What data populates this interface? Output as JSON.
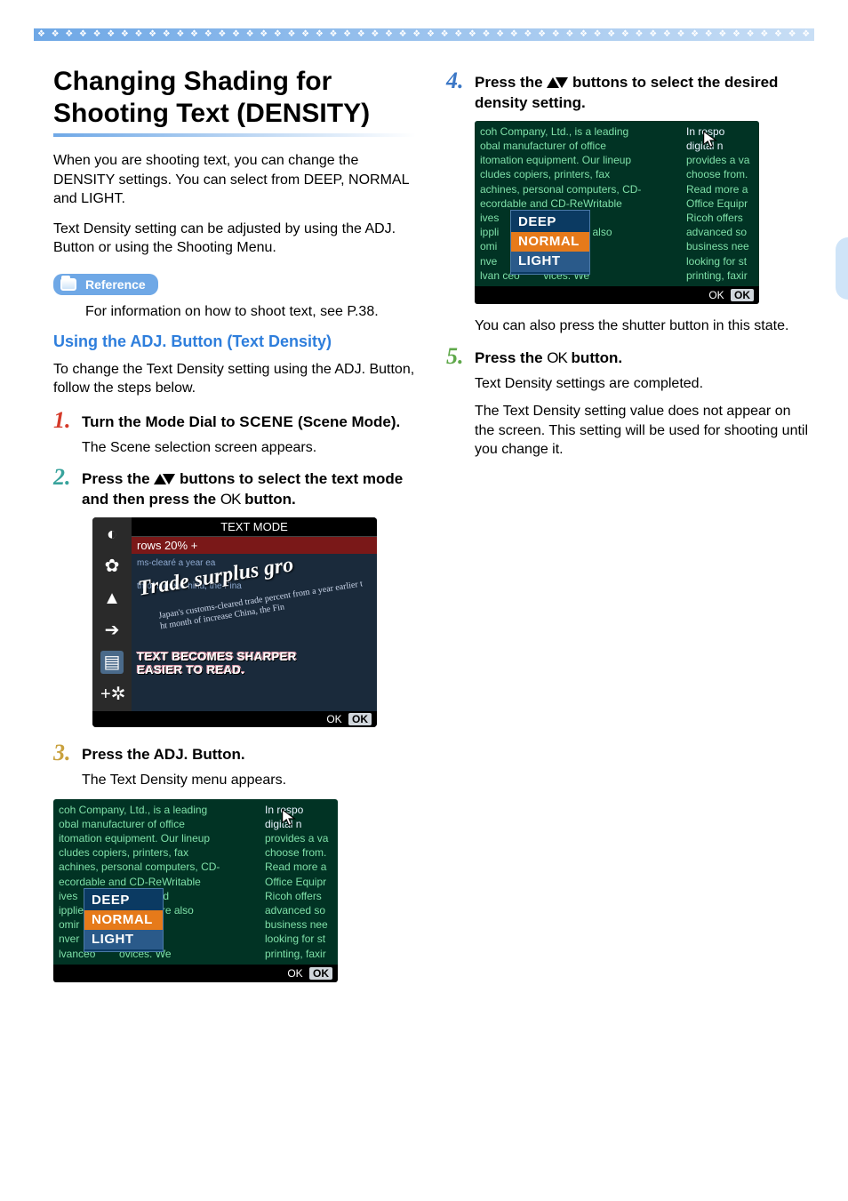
{
  "colors": {
    "band_start": "#6fa8e6",
    "band_end": "#c8def5",
    "blue_heading": "#2e7edc",
    "body_text": "#000000",
    "step_red": "#d53a2a",
    "step_teal": "#38a39c",
    "step_gold": "#c9a13e",
    "step_blue": "#3b77c6",
    "step_green": "#5fa84a",
    "lcd_bg_dark": "#1a2a3b",
    "lcd_green_bg": "#013324",
    "lcd_green_text": "#7fe0a8",
    "popup_bg": "#0b3a62",
    "popup_sel": "#e67a1a",
    "side_tab": "#cfe4f8"
  },
  "typography": {
    "heading_size_pt": 22,
    "body_size_pt": 12,
    "step_num_size_pt": 20,
    "step_text_size_pt": 13,
    "blue_sub_size_pt": 14
  },
  "left": {
    "heading": "Changing Shading for Shooting Text (DENSITY)",
    "intro1": "When you are shooting text, you can change the DENSITY settings. You can select from DEEP, NORMAL and LIGHT.",
    "intro2": "Text Density setting can be adjusted by using the ADJ. Button or using the Shooting Menu.",
    "reference_label": "Reference",
    "reference_body": "For information on how to shoot text, see P.38.",
    "blue_sub": "Using the ADJ. Button (Text Density)",
    "sub_intro": "To change the Text Density setting using the ADJ. Button, follow the steps below.",
    "step1": {
      "num": "1.",
      "text_prefix": "Turn the Mode Dial to ",
      "scene_word": "SCENE",
      "text_suffix": " (Scene Mode).",
      "body": "The Scene selection screen appears."
    },
    "step2": {
      "num": "2.",
      "text_prefix": "Press the ",
      "text_mid": " buttons to select the text mode and then press the ",
      "ok": "OK",
      "text_suffix": " button."
    },
    "lcd_text": {
      "title": "TEXT MODE",
      "rows_line": "rows 20% +",
      "headline": "Trade surplus gro",
      "bg1": "ms-clearé\na year ea",
      "bg2": "th of increas\nhina, the Fina",
      "subtext": "Japan's customs-cleared trade percent from a year earlier t ht month of increase China, the Fin",
      "overlay1": "TEXT BECOMES SHARPER",
      "overlay2": "EASIER TO READ.",
      "footer_ok": "OK",
      "footer_ok_btn": "OK",
      "icons": [
        "globe",
        "leaf",
        "mountain",
        "dial",
        "doc",
        "plus-cog"
      ]
    },
    "step3": {
      "num": "3.",
      "text": "Press the ADJ. Button.",
      "body": "The Text Density menu appears."
    },
    "lcd_green": {
      "left_lines": [
        "coh Company, Ltd., is a leading",
        "obal manufacturer of office",
        "itomation equipment. Our lineup",
        "cludes copiers, printers, fax",
        "achines, personal computers, CD-",
        "ecordable and CD-ReWritable",
        "ives",
        "ipplie",
        "omir",
        "nver",
        "lvanceo"
      ],
      "left_after": [
        "l related",
        ". We are also",
        "d",
        "and",
        "ovices. We"
      ],
      "right_lines": [
        "In respo",
        "digital n",
        "provides a va",
        "choose from.",
        "Read more a",
        "Office Equipr",
        "Ricoh offers",
        "advanced so",
        "business nee",
        "looking for st",
        "printing, faxir"
      ],
      "options": [
        "DEEP",
        "NORMAL",
        "LIGHT"
      ],
      "selected_index": 1,
      "footer_ok": "OK",
      "footer_ok_btn": "OK"
    }
  },
  "right": {
    "step4": {
      "num": "4.",
      "text_prefix": "Press the ",
      "text_suffix": " buttons to select the desired density setting."
    },
    "lcd_green2": {
      "left_lines": [
        "coh Company, Ltd., is a leading",
        "obal manufacturer of office",
        "itomation equipment. Our lineup",
        "cludes copiers, printers, fax",
        "achines, personal computers, CD-",
        "ecordable and CD-ReWritable",
        "ives",
        "ippli",
        "omi",
        "nve",
        "lvan ceo"
      ],
      "left_after": [
        "l related",
        ". We are also",
        "il",
        "and",
        "vices. We"
      ],
      "right_lines": [
        "In respo",
        "digital n",
        "provides a va",
        "choose from.",
        "Read more a",
        "Office Equipr",
        "Ricoh offers",
        "advanced so",
        "business nee",
        "looking for st",
        "printing, faxir"
      ],
      "options": [
        "DEEP",
        "NORMAL",
        "LIGHT"
      ],
      "selected_index": 2,
      "footer_ok": "OK",
      "footer_ok_btn": "OK"
    },
    "body_after4": "You can also press the shutter button in this state.",
    "step5": {
      "num": "5.",
      "text_prefix": "Press the ",
      "ok": "OK",
      "text_suffix": " button."
    },
    "body5a": "Text Density settings are completed.",
    "body5b": "The Text Density setting value does not appear on the screen. This setting will be used for shooting until you change it."
  }
}
